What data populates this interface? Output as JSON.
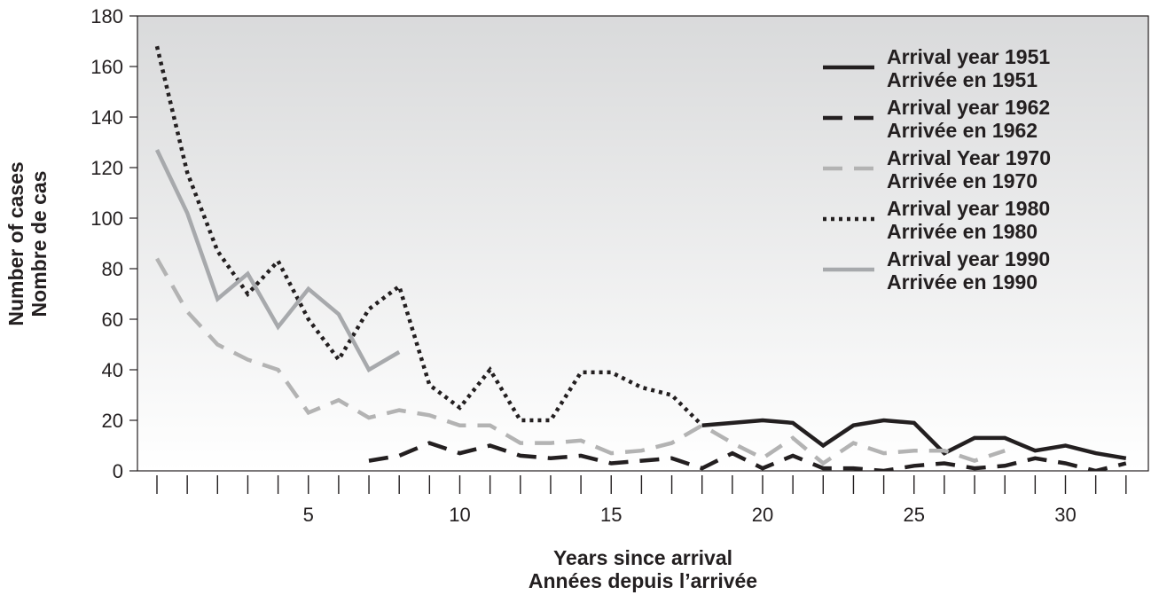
{
  "chart_data": {
    "type": "line",
    "xlabel": [
      "Years since arrival",
      "Années depuis l’arrivée"
    ],
    "ylabel": [
      "Number of cases",
      "Nombre de cas"
    ],
    "xlim": [
      0,
      33
    ],
    "ylim": [
      0,
      180
    ],
    "x_ticks": [
      5,
      10,
      15,
      20,
      25,
      30
    ],
    "y_ticks": [
      0,
      20,
      40,
      60,
      80,
      100,
      120,
      140,
      160,
      180
    ],
    "legend_position": "top-right",
    "series": [
      {
        "name": [
          "Arrival year 1951",
          "Arrivée en 1951"
        ],
        "color": "#231f20",
        "style": "solid",
        "x": [
          18,
          19,
          20,
          21,
          22,
          23,
          24,
          25,
          26,
          27,
          28,
          29,
          30,
          31,
          32
        ],
        "y": [
          18,
          19,
          20,
          19,
          10,
          18,
          20,
          19,
          7,
          13,
          13,
          8,
          10,
          7,
          5
        ]
      },
      {
        "name": [
          "Arrival year 1962",
          "Arrivée en 1962"
        ],
        "color": "#231f20",
        "style": "dashed",
        "x": [
          7,
          8,
          9,
          10,
          11,
          12,
          13,
          14,
          15,
          16,
          17,
          18,
          19,
          20,
          21,
          22,
          23,
          24,
          25,
          26,
          27,
          28,
          29,
          30,
          31,
          32
        ],
        "y": [
          4,
          6,
          11,
          7,
          10,
          6,
          5,
          6,
          3,
          4,
          5,
          1,
          7,
          1,
          6,
          1,
          1,
          0,
          2,
          3,
          1,
          2,
          5,
          3,
          0,
          3
        ]
      },
      {
        "name": [
          "Arrival Year 1970",
          "Arrivée en 1970"
        ],
        "color": "#b3b3b3",
        "style": "dashed",
        "x": [
          0,
          1,
          2,
          3,
          4,
          5,
          6,
          7,
          8,
          9,
          10,
          11,
          12,
          13,
          14,
          15,
          16,
          17,
          18,
          19,
          20,
          21,
          22,
          23,
          24,
          25,
          26,
          27,
          28
        ],
        "y": [
          84,
          63,
          50,
          44,
          40,
          23,
          28,
          21,
          24,
          22,
          18,
          18,
          11,
          11,
          12,
          7,
          8,
          11,
          18,
          11,
          5,
          13,
          3,
          11,
          7,
          8,
          8,
          4,
          8
        ]
      },
      {
        "name": [
          "Arrival year 1980",
          "Arrivée en 1980"
        ],
        "color": "#231f20",
        "style": "dotted",
        "x": [
          0,
          1,
          2,
          3,
          4,
          5,
          6,
          7,
          8,
          9,
          10,
          11,
          12,
          13,
          14,
          15,
          16,
          17,
          18
        ],
        "y": [
          168,
          118,
          87,
          70,
          83,
          60,
          44,
          64,
          73,
          34,
          25,
          40,
          20,
          20,
          39,
          39,
          33,
          30,
          18
        ]
      },
      {
        "name": [
          "Arrival year 1990",
          "Arrivée en 1990"
        ],
        "color": "#a7a9ac",
        "style": "solid",
        "x": [
          0,
          1,
          2,
          3,
          4,
          5,
          6,
          7,
          8
        ],
        "y": [
          127,
          102,
          68,
          78,
          57,
          72,
          62,
          40,
          47
        ]
      }
    ]
  }
}
